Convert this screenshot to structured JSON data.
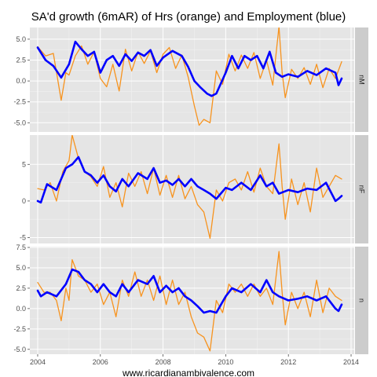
{
  "chart_data": {
    "type": "line",
    "title": "SA'd growth (6mAR) of Hrs (orange) and Employment (blue)",
    "xlabel": "www.ricardianambivalence.com",
    "xlim": [
      2003.75,
      2014.1
    ],
    "x_ticks": [
      2004,
      2006,
      2008,
      2010,
      2012,
      2014
    ],
    "colors": {
      "hours": "#f7931e",
      "employment": "#0000ff",
      "panel_bg": "#e5e5e5",
      "strip_bg": "#cccccc",
      "grid": "#ffffff"
    },
    "panels": [
      {
        "strip": "nM",
        "ylim": [
          -6.1,
          6.4
        ],
        "y_ticks": [
          -5.0,
          -2.5,
          0.0,
          2.5,
          5.0
        ],
        "y_tick_labels": [
          "-5.0",
          "-2.5",
          "0.0",
          "2.5",
          "5.0"
        ],
        "series": [
          {
            "key": "hours",
            "x": [
              2004.0,
              2004.25,
              2004.5,
              2004.75,
              2004.9,
              2005.0,
              2005.2,
              2005.4,
              2005.6,
              2005.8,
              2006.0,
              2006.2,
              2006.4,
              2006.6,
              2006.8,
              2007.0,
              2007.2,
              2007.4,
              2007.6,
              2007.8,
              2008.0,
              2008.2,
              2008.4,
              2008.6,
              2008.8,
              2009.0,
              2009.15,
              2009.3,
              2009.5,
              2009.7,
              2009.9,
              2010.1,
              2010.3,
              2010.5,
              2010.7,
              2010.9,
              2011.1,
              2011.3,
              2011.5,
              2011.6,
              2011.7,
              2011.8,
              2011.9,
              2012.1,
              2012.3,
              2012.5,
              2012.7,
              2012.9,
              2013.1,
              2013.3,
              2013.5,
              2013.7
            ],
            "values": [
              4.1,
              3.0,
              3.3,
              -2.3,
              1.0,
              0.7,
              3.0,
              4.2,
              2.0,
              3.5,
              0.3,
              -0.7,
              2.0,
              -1.2,
              3.8,
              1.2,
              3.5,
              2.1,
              3.6,
              1.0,
              3.2,
              4.0,
              1.5,
              3.1,
              0.5,
              -3.0,
              -5.3,
              -4.6,
              -5.0,
              1.2,
              -0.4,
              3.2,
              1.2,
              3.1,
              1.5,
              3.4,
              0.3,
              2.5,
              -0.5,
              3.0,
              6.5,
              1.0,
              -2.0,
              1.4,
              0.3,
              1.6,
              -0.4,
              2.0,
              -0.8,
              1.5,
              0.3,
              2.3
            ]
          },
          {
            "key": "employment",
            "x": [
              2004.0,
              2004.25,
              2004.5,
              2004.75,
              2005.0,
              2005.2,
              2005.4,
              2005.6,
              2005.8,
              2006.0,
              2006.2,
              2006.4,
              2006.6,
              2006.8,
              2007.0,
              2007.2,
              2007.4,
              2007.6,
              2007.8,
              2008.0,
              2008.3,
              2008.6,
              2008.8,
              2009.0,
              2009.2,
              2009.4,
              2009.55,
              2009.7,
              2010.0,
              2010.2,
              2010.4,
              2010.6,
              2010.8,
              2011.0,
              2011.2,
              2011.4,
              2011.6,
              2011.8,
              2012.0,
              2012.3,
              2012.6,
              2012.9,
              2013.2,
              2013.5,
              2013.6,
              2013.7
            ],
            "values": [
              4.0,
              2.5,
              1.8,
              0.4,
              2.0,
              4.7,
              3.8,
              3.0,
              3.5,
              1.0,
              2.5,
              3.0,
              1.8,
              3.2,
              2.4,
              3.4,
              3.0,
              3.7,
              1.8,
              2.8,
              3.6,
              3.0,
              1.7,
              0.0,
              -0.8,
              -1.5,
              -1.8,
              -1.5,
              1.0,
              3.0,
              1.5,
              3.0,
              2.5,
              3.0,
              1.5,
              3.5,
              1.0,
              0.5,
              0.8,
              0.5,
              1.2,
              0.7,
              1.5,
              1.0,
              -0.5,
              0.3
            ]
          }
        ]
      },
      {
        "strip": "nF",
        "ylim": [
          -5.8,
          9.0
        ],
        "y_ticks": [
          -5,
          0,
          5
        ],
        "y_tick_labels": [
          "-5",
          "0",
          "5"
        ],
        "series": [
          {
            "key": "hours",
            "x": [
              2004.0,
              2004.2,
              2004.4,
              2004.6,
              2004.8,
              2005.0,
              2005.1,
              2005.3,
              2005.5,
              2005.7,
              2005.9,
              2006.1,
              2006.3,
              2006.5,
              2006.7,
              2006.9,
              2007.1,
              2007.3,
              2007.5,
              2007.7,
              2007.9,
              2008.1,
              2008.3,
              2008.5,
              2008.7,
              2008.9,
              2009.1,
              2009.3,
              2009.5,
              2009.7,
              2009.9,
              2010.1,
              2010.3,
              2010.5,
              2010.7,
              2010.9,
              2011.1,
              2011.3,
              2011.5,
              2011.7,
              2011.8,
              2011.9,
              2012.1,
              2012.3,
              2012.5,
              2012.7,
              2012.9,
              2013.1,
              2013.3,
              2013.5,
              2013.7
            ],
            "values": [
              1.7,
              1.5,
              2.5,
              0.0,
              4.0,
              5.5,
              9.0,
              5.8,
              4.0,
              3.3,
              2.0,
              4.7,
              0.5,
              2.5,
              -0.8,
              3.8,
              2.0,
              4.0,
              1.0,
              4.5,
              0.8,
              3.5,
              0.5,
              3.5,
              0.3,
              2.0,
              -0.5,
              -1.5,
              -5.1,
              1.5,
              0.0,
              2.5,
              3.0,
              1.5,
              4.0,
              1.2,
              4.5,
              2.0,
              1.0,
              7.8,
              2.0,
              -2.5,
              3.0,
              -0.5,
              2.5,
              -1.5,
              4.5,
              0.5,
              2.0,
              3.5,
              3.0
            ]
          },
          {
            "key": "employment",
            "x": [
              2004.0,
              2004.1,
              2004.3,
              2004.6,
              2004.9,
              2005.1,
              2005.3,
              2005.5,
              2005.7,
              2005.9,
              2006.1,
              2006.3,
              2006.5,
              2006.7,
              2006.9,
              2007.2,
              2007.5,
              2007.7,
              2007.9,
              2008.1,
              2008.3,
              2008.5,
              2008.7,
              2008.9,
              2009.1,
              2009.3,
              2009.5,
              2009.7,
              2010.0,
              2010.2,
              2010.5,
              2010.8,
              2011.1,
              2011.3,
              2011.5,
              2011.7,
              2012.0,
              2012.3,
              2012.6,
              2012.9,
              2013.2,
              2013.5,
              2013.6,
              2013.7
            ],
            "values": [
              0.0,
              -0.2,
              2.3,
              1.5,
              4.5,
              5.0,
              6.0,
              4.0,
              3.5,
              2.5,
              3.5,
              2.0,
              1.3,
              3.0,
              2.0,
              3.8,
              3.0,
              4.5,
              2.5,
              2.8,
              2.2,
              3.0,
              2.0,
              3.0,
              2.0,
              1.5,
              1.0,
              0.3,
              1.8,
              1.5,
              2.5,
              1.5,
              3.5,
              2.0,
              2.5,
              1.0,
              1.5,
              1.2,
              1.7,
              1.5,
              2.5,
              0.0,
              0.3,
              0.7
            ]
          }
        ]
      },
      {
        "strip": "n",
        "ylim": [
          -5.6,
          7.6
        ],
        "y_ticks": [
          -5.0,
          -2.5,
          0.0,
          2.5,
          5.0,
          7.5
        ],
        "y_tick_labels": [
          "-5.0",
          "-2.5",
          "0.0",
          "2.5",
          "5.0",
          "7.5"
        ],
        "series": [
          {
            "key": "hours",
            "x": [
              2004.0,
              2004.2,
              2004.4,
              2004.6,
              2004.75,
              2004.9,
              2005.0,
              2005.1,
              2005.3,
              2005.5,
              2005.7,
              2005.9,
              2006.1,
              2006.3,
              2006.5,
              2006.7,
              2006.9,
              2007.1,
              2007.3,
              2007.5,
              2007.7,
              2007.9,
              2008.1,
              2008.3,
              2008.5,
              2008.7,
              2008.9,
              2009.1,
              2009.3,
              2009.5,
              2009.7,
              2009.9,
              2010.1,
              2010.3,
              2010.5,
              2010.7,
              2010.9,
              2011.1,
              2011.3,
              2011.5,
              2011.7,
              2011.8,
              2011.9,
              2012.1,
              2012.3,
              2012.5,
              2012.7,
              2012.9,
              2013.1,
              2013.3,
              2013.5,
              2013.7
            ],
            "values": [
              3.2,
              2.0,
              2.0,
              1.0,
              -1.5,
              2.5,
              1.0,
              6.0,
              4.0,
              3.5,
              2.0,
              3.0,
              0.5,
              2.0,
              -1.0,
              3.5,
              1.5,
              4.5,
              1.5,
              3.5,
              1.0,
              4.0,
              0.5,
              3.5,
              0.5,
              2.0,
              -1.0,
              -3.0,
              -3.5,
              -5.2,
              1.0,
              -0.5,
              3.0,
              2.0,
              3.0,
              1.5,
              3.0,
              1.5,
              2.5,
              0.5,
              7.0,
              2.0,
              -2.0,
              2.0,
              0.0,
              2.0,
              -1.0,
              3.5,
              -0.5,
              2.5,
              1.5,
              1.0
            ]
          },
          {
            "key": "employment",
            "x": [
              2004.0,
              2004.1,
              2004.3,
              2004.6,
              2004.9,
              2005.1,
              2005.3,
              2005.5,
              2005.7,
              2005.9,
              2006.1,
              2006.3,
              2006.5,
              2006.7,
              2006.9,
              2007.2,
              2007.5,
              2007.7,
              2007.9,
              2008.1,
              2008.3,
              2008.5,
              2008.7,
              2008.9,
              2009.1,
              2009.3,
              2009.5,
              2009.7,
              2010.0,
              2010.2,
              2010.5,
              2010.8,
              2011.1,
              2011.3,
              2011.5,
              2011.7,
              2012.0,
              2012.3,
              2012.6,
              2012.9,
              2013.2,
              2013.5,
              2013.6,
              2013.7
            ],
            "values": [
              2.2,
              1.5,
              2.0,
              1.5,
              3.0,
              4.8,
              4.5,
              3.5,
              3.0,
              2.0,
              3.0,
              2.0,
              1.5,
              3.0,
              2.0,
              3.5,
              3.0,
              4.0,
              2.0,
              2.8,
              2.0,
              2.5,
              1.5,
              1.0,
              0.3,
              -0.5,
              -0.3,
              -0.5,
              1.5,
              2.5,
              2.0,
              3.0,
              2.0,
              3.5,
              2.0,
              1.5,
              1.0,
              1.2,
              1.5,
              1.0,
              1.5,
              0.0,
              -0.3,
              0.5
            ]
          }
        ]
      }
    ]
  }
}
